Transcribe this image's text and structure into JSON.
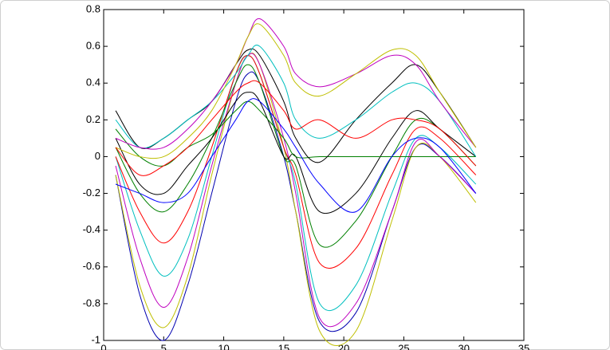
{
  "chart_data": {
    "type": "line",
    "x": [
      1,
      3,
      5,
      7,
      9,
      11,
      12,
      13,
      15,
      16,
      18,
      21,
      24,
      26,
      28,
      31
    ],
    "xlim": [
      0,
      35
    ],
    "xticks": [
      0,
      5,
      10,
      15,
      20,
      25,
      30,
      35
    ],
    "ylim": [
      -1,
      0.8
    ],
    "yticks": [
      -1,
      -0.8,
      -0.6,
      -0.4,
      -0.2,
      0,
      0.2,
      0.4,
      0.6,
      0.8
    ],
    "grid": false,
    "series": [
      {
        "color": "#0000b0",
        "values": [
          -0.1,
          -0.75,
          -1.0,
          -0.7,
          -0.2,
          0.3,
          0.45,
          0.4,
          0.0,
          -0.3,
          -0.9,
          -0.85,
          -0.3,
          0.05,
          0.0,
          -0.2
        ]
      },
      {
        "color": "#bfbf00",
        "values": [
          -0.1,
          -0.7,
          -0.93,
          -0.65,
          -0.1,
          0.4,
          0.55,
          0.5,
          0.05,
          -0.3,
          -0.95,
          -0.95,
          -0.35,
          0.05,
          0.0,
          -0.25
        ]
      },
      {
        "color": "#bf00bf",
        "values": [
          -0.05,
          -0.55,
          -0.82,
          -0.55,
          -0.05,
          0.4,
          0.55,
          0.5,
          0.1,
          -0.2,
          -0.88,
          -0.8,
          -0.3,
          0.08,
          0.0,
          -0.2
        ]
      },
      {
        "color": "#00bfbf",
        "values": [
          0.0,
          -0.4,
          -0.65,
          -0.45,
          0.0,
          0.45,
          0.55,
          0.45,
          0.05,
          -0.15,
          -0.8,
          -0.7,
          -0.2,
          0.1,
          0.05,
          -0.15
        ]
      },
      {
        "color": "#ff0000",
        "values": [
          0.0,
          -0.3,
          -0.47,
          -0.3,
          0.05,
          0.45,
          0.55,
          0.45,
          0.05,
          -0.1,
          -0.58,
          -0.5,
          -0.1,
          0.15,
          0.1,
          -0.1
        ]
      },
      {
        "color": "#008000",
        "values": [
          0.05,
          -0.2,
          -0.3,
          -0.15,
          0.1,
          0.4,
          0.5,
          0.4,
          0.0,
          -0.05,
          -0.48,
          -0.35,
          0.0,
          0.2,
          0.15,
          -0.05
        ]
      },
      {
        "color": "#000000",
        "values": [
          0.1,
          -0.15,
          -0.2,
          -0.05,
          0.1,
          0.3,
          0.35,
          0.3,
          0.0,
          0.0,
          -0.3,
          -0.2,
          0.1,
          0.25,
          0.15,
          0.0
        ]
      },
      {
        "color": "#008000",
        "values": [
          0.15,
          0.0,
          -0.05,
          0.05,
          0.12,
          0.25,
          0.3,
          0.25,
          0.1,
          0.0,
          0,
          0,
          0,
          0,
          0,
          0
        ]
      },
      {
        "color": "#000000",
        "values": [
          0.25,
          0.05,
          0.1,
          0.2,
          0.3,
          0.5,
          0.58,
          0.55,
          0.3,
          0.1,
          -0.03,
          0.2,
          0.4,
          0.5,
          0.35,
          0.05
        ]
      },
      {
        "color": "#00bfbf",
        "values": [
          0.2,
          0.05,
          0.1,
          0.2,
          0.3,
          0.45,
          0.55,
          0.6,
          0.4,
          0.2,
          0.1,
          0.2,
          0.35,
          0.4,
          0.3,
          0.0
        ]
      },
      {
        "color": "#bf00bf",
        "values": [
          0.1,
          0.05,
          0.05,
          0.15,
          0.3,
          0.5,
          0.65,
          0.75,
          0.6,
          0.45,
          0.38,
          0.45,
          0.55,
          0.5,
          0.3,
          0.05
        ]
      },
      {
        "color": "#bfbf00",
        "values": [
          0.05,
          0.0,
          0.0,
          0.1,
          0.25,
          0.5,
          0.65,
          0.72,
          0.55,
          0.4,
          0.33,
          0.45,
          0.58,
          0.55,
          0.35,
          0.05
        ]
      },
      {
        "color": "#ff0000",
        "values": [
          0.05,
          -0.1,
          -0.05,
          0.05,
          0.2,
          0.35,
          0.4,
          0.4,
          0.25,
          0.15,
          0.2,
          0.1,
          0.2,
          0.2,
          0.15,
          -0.05
        ]
      },
      {
        "color": "#0000ff",
        "values": [
          -0.15,
          -0.2,
          -0.25,
          -0.2,
          0.0,
          0.2,
          0.3,
          0.3,
          0.15,
          0.05,
          -0.15,
          -0.3,
          0.0,
          0.1,
          0.05,
          -0.2
        ]
      }
    ]
  }
}
